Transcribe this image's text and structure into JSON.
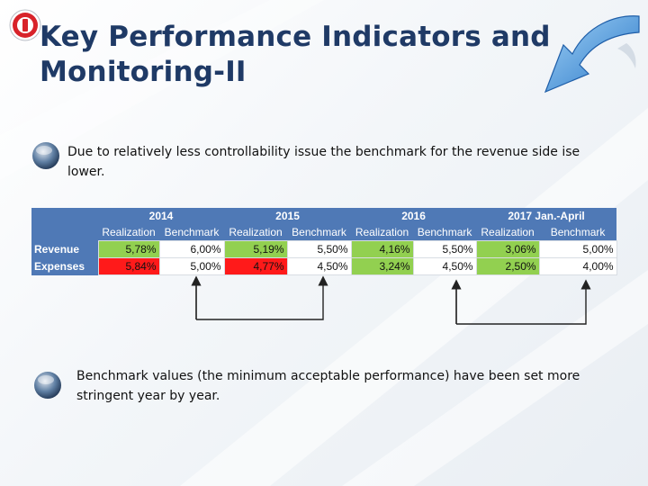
{
  "slide": {
    "title_line1": "Key Performance Indicators and",
    "title_line2": "Monitoring-II",
    "bullet1": "Due to relatively less controllability issue the benchmark for the revenue side ise lower.",
    "bullet2": "Benchmark values (the minimum acceptable performance) have been set more stringent year by year."
  },
  "table": {
    "years": [
      "2014",
      "2015",
      "2016",
      "2017 Jan.-April"
    ],
    "sub_realization": "Realization",
    "sub_benchmark": "Benchmark",
    "rows": [
      {
        "label": "Revenue",
        "cells": [
          {
            "realization": "5,78%",
            "benchmark": "6,00%",
            "status": "green"
          },
          {
            "realization": "5,19%",
            "benchmark": "5,50%",
            "status": "green"
          },
          {
            "realization": "4,16%",
            "benchmark": "5,50%",
            "status": "green"
          },
          {
            "realization": "3,06%",
            "benchmark": "5,00%",
            "status": "green"
          }
        ]
      },
      {
        "label": "Expenses",
        "cells": [
          {
            "realization": "5,84%",
            "benchmark": "5,00%",
            "status": "red"
          },
          {
            "realization": "4,77%",
            "benchmark": "4,50%",
            "status": "red"
          },
          {
            "realization": "3,24%",
            "benchmark": "4,50%",
            "status": "green"
          },
          {
            "realization": "2,50%",
            "benchmark": "4,00%",
            "status": "green"
          }
        ]
      }
    ]
  },
  "colors": {
    "title": "#1f3a66",
    "header": "#4f79b6",
    "good": "#92d050",
    "bad": "#ff1a1a"
  }
}
